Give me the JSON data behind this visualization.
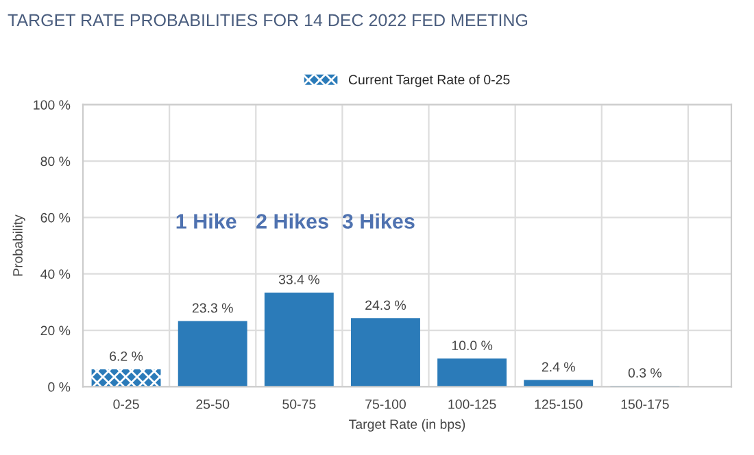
{
  "chart_data": {
    "type": "bar",
    "title": "TARGET RATE PROBABILITIES FOR 14 DEC 2022 FED MEETING",
    "xlabel": "Target Rate (in bps)",
    "ylabel": "Probability",
    "categories": [
      "0-25",
      "25-50",
      "50-75",
      "75-100",
      "100-125",
      "125-150",
      "150-175"
    ],
    "series": [
      {
        "name": "Current Target Rate of 0-25",
        "color": "#2b7bb9",
        "values": [
          6.2,
          null,
          null,
          null,
          null,
          null,
          null
        ],
        "value_labels": [
          "6.2 %",
          null,
          null,
          null,
          null,
          null,
          null
        ]
      },
      {
        "color": "#2b7bb9",
        "values": [
          null,
          23.3,
          33.4,
          24.3,
          10.0,
          2.4,
          0.3
        ],
        "value_labels": [
          null,
          "23.3 %",
          "33.4 %",
          "24.3 %",
          "10.0 %",
          "2.4 %",
          "0.3 %"
        ]
      }
    ],
    "ylim": [
      0,
      100
    ],
    "yticks": [
      {
        "value": 0,
        "label": "0 %"
      },
      {
        "value": 20,
        "label": "20 %"
      },
      {
        "value": 40,
        "label": "40 %"
      },
      {
        "value": 60,
        "label": "60 %"
      },
      {
        "value": 80,
        "label": "80 %"
      },
      {
        "value": 100,
        "label": "100 %"
      }
    ],
    "annotations": [
      "1 Hike",
      "2 Hikes",
      "3 Hikes"
    ],
    "grid": true,
    "legend": "top"
  }
}
